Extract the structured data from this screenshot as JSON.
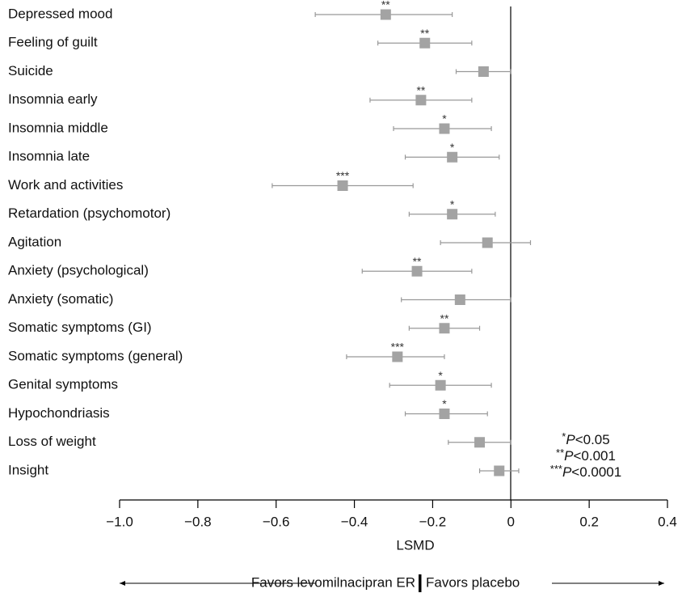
{
  "chart_data": {
    "type": "forest",
    "categories": [
      "Depressed mood",
      "Feeling of guilt",
      "Suicide",
      "Insomnia early",
      "Insomnia middle",
      "Insomnia late",
      "Work and activities",
      "Retardation (psychomotor)",
      "Agitation",
      "Anxiety (psychological)",
      "Anxiety (somatic)",
      "Somatic symptoms (GI)",
      "Somatic symptoms (general)",
      "Genital symptoms",
      "Hypochondriasis",
      "Loss of weight",
      "Insight"
    ],
    "values": [
      -0.32,
      -0.22,
      -0.07,
      -0.23,
      -0.17,
      -0.15,
      -0.43,
      -0.15,
      -0.06,
      -0.24,
      -0.13,
      -0.17,
      -0.29,
      -0.18,
      -0.17,
      -0.08,
      -0.03
    ],
    "ci_low": [
      -0.5,
      -0.34,
      -0.14,
      -0.36,
      -0.3,
      -0.27,
      -0.61,
      -0.26,
      -0.18,
      -0.38,
      -0.28,
      -0.26,
      -0.42,
      -0.31,
      -0.27,
      -0.16,
      -0.08
    ],
    "ci_high": [
      -0.15,
      -0.1,
      0,
      -0.1,
      -0.05,
      -0.03,
      -0.25,
      -0.04,
      0.05,
      -0.1,
      0,
      -0.08,
      -0.17,
      -0.05,
      -0.06,
      0,
      0.02
    ],
    "significance": [
      "**",
      "**",
      null,
      "**",
      "*",
      "*",
      "***",
      "*",
      null,
      "**",
      null,
      "**",
      "***",
      "*",
      "*",
      null,
      null
    ],
    "color": "#a3a3a3",
    "xlabel": "LSMD",
    "xlim": [
      -1,
      0.4
    ],
    "xticks": [
      {
        "value": -1,
        "label": "−1.0"
      },
      {
        "value": -0.8,
        "label": "−0.8"
      },
      {
        "value": -0.6,
        "label": "−0.6"
      },
      {
        "value": -0.4,
        "label": "−0.4"
      },
      {
        "value": -0.2,
        "label": "−0.2"
      },
      0,
      0.2,
      0.4
    ],
    "legend": [
      {
        "stars": "*",
        "p": "P",
        "threshold": "<0.05"
      },
      {
        "stars": "**",
        "p": "P",
        "threshold": "<0.001"
      },
      {
        "stars": "***",
        "p": "P",
        "threshold": "<0.0001"
      }
    ],
    "direction_left": "Favors levomilnacipran ER",
    "direction_right": "Favors placebo"
  }
}
